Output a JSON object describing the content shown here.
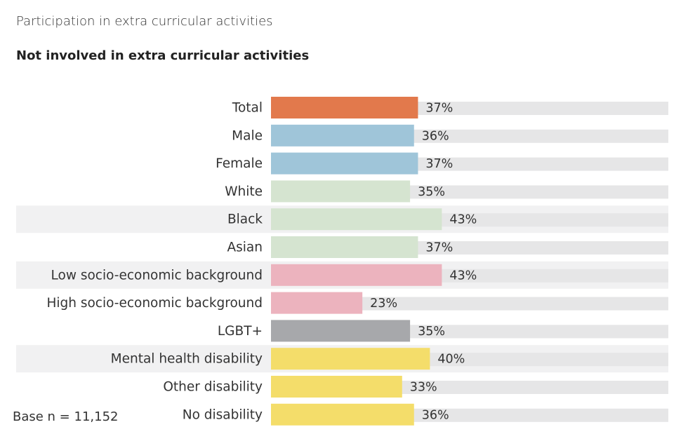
{
  "header": {
    "title": "Participation in extra curricular activities",
    "subtitle": "Not involved in extra curricular activities"
  },
  "footer": {
    "base_note": "Base n = 11,152"
  },
  "chart_data": {
    "type": "bar",
    "orientation": "horizontal",
    "title": "Not involved in extra curricular activities",
    "categories": [
      "Total",
      "Male",
      "Female",
      "White",
      "Black",
      "Asian",
      "Low socio-economic background",
      "High socio-economic background",
      "LGBT+",
      "Mental health disability",
      "Other disability",
      "No disability"
    ],
    "values": [
      37,
      36,
      37,
      35,
      43,
      37,
      43,
      23,
      35,
      40,
      33,
      36
    ],
    "value_labels": [
      "37%",
      "36%",
      "37%",
      "35%",
      "43%",
      "37%",
      "43%",
      "23%",
      "35%",
      "40%",
      "33%",
      "36%"
    ],
    "colors": [
      "#E2794C",
      "#9FC5D9",
      "#9FC5D9",
      "#D5E4D0",
      "#D5E4D0",
      "#D5E4D0",
      "#ECB3BE",
      "#ECB3BE",
      "#A7A8AB",
      "#F4DD6A",
      "#F4DD6A",
      "#F4DD6A"
    ],
    "highlighted_rows": [
      4,
      6,
      9
    ],
    "track_color": "#E6E6E7",
    "row_highlight_color": "#F1F1F2",
    "xlim": [
      0,
      100
    ],
    "grid": false,
    "legend": "none"
  }
}
